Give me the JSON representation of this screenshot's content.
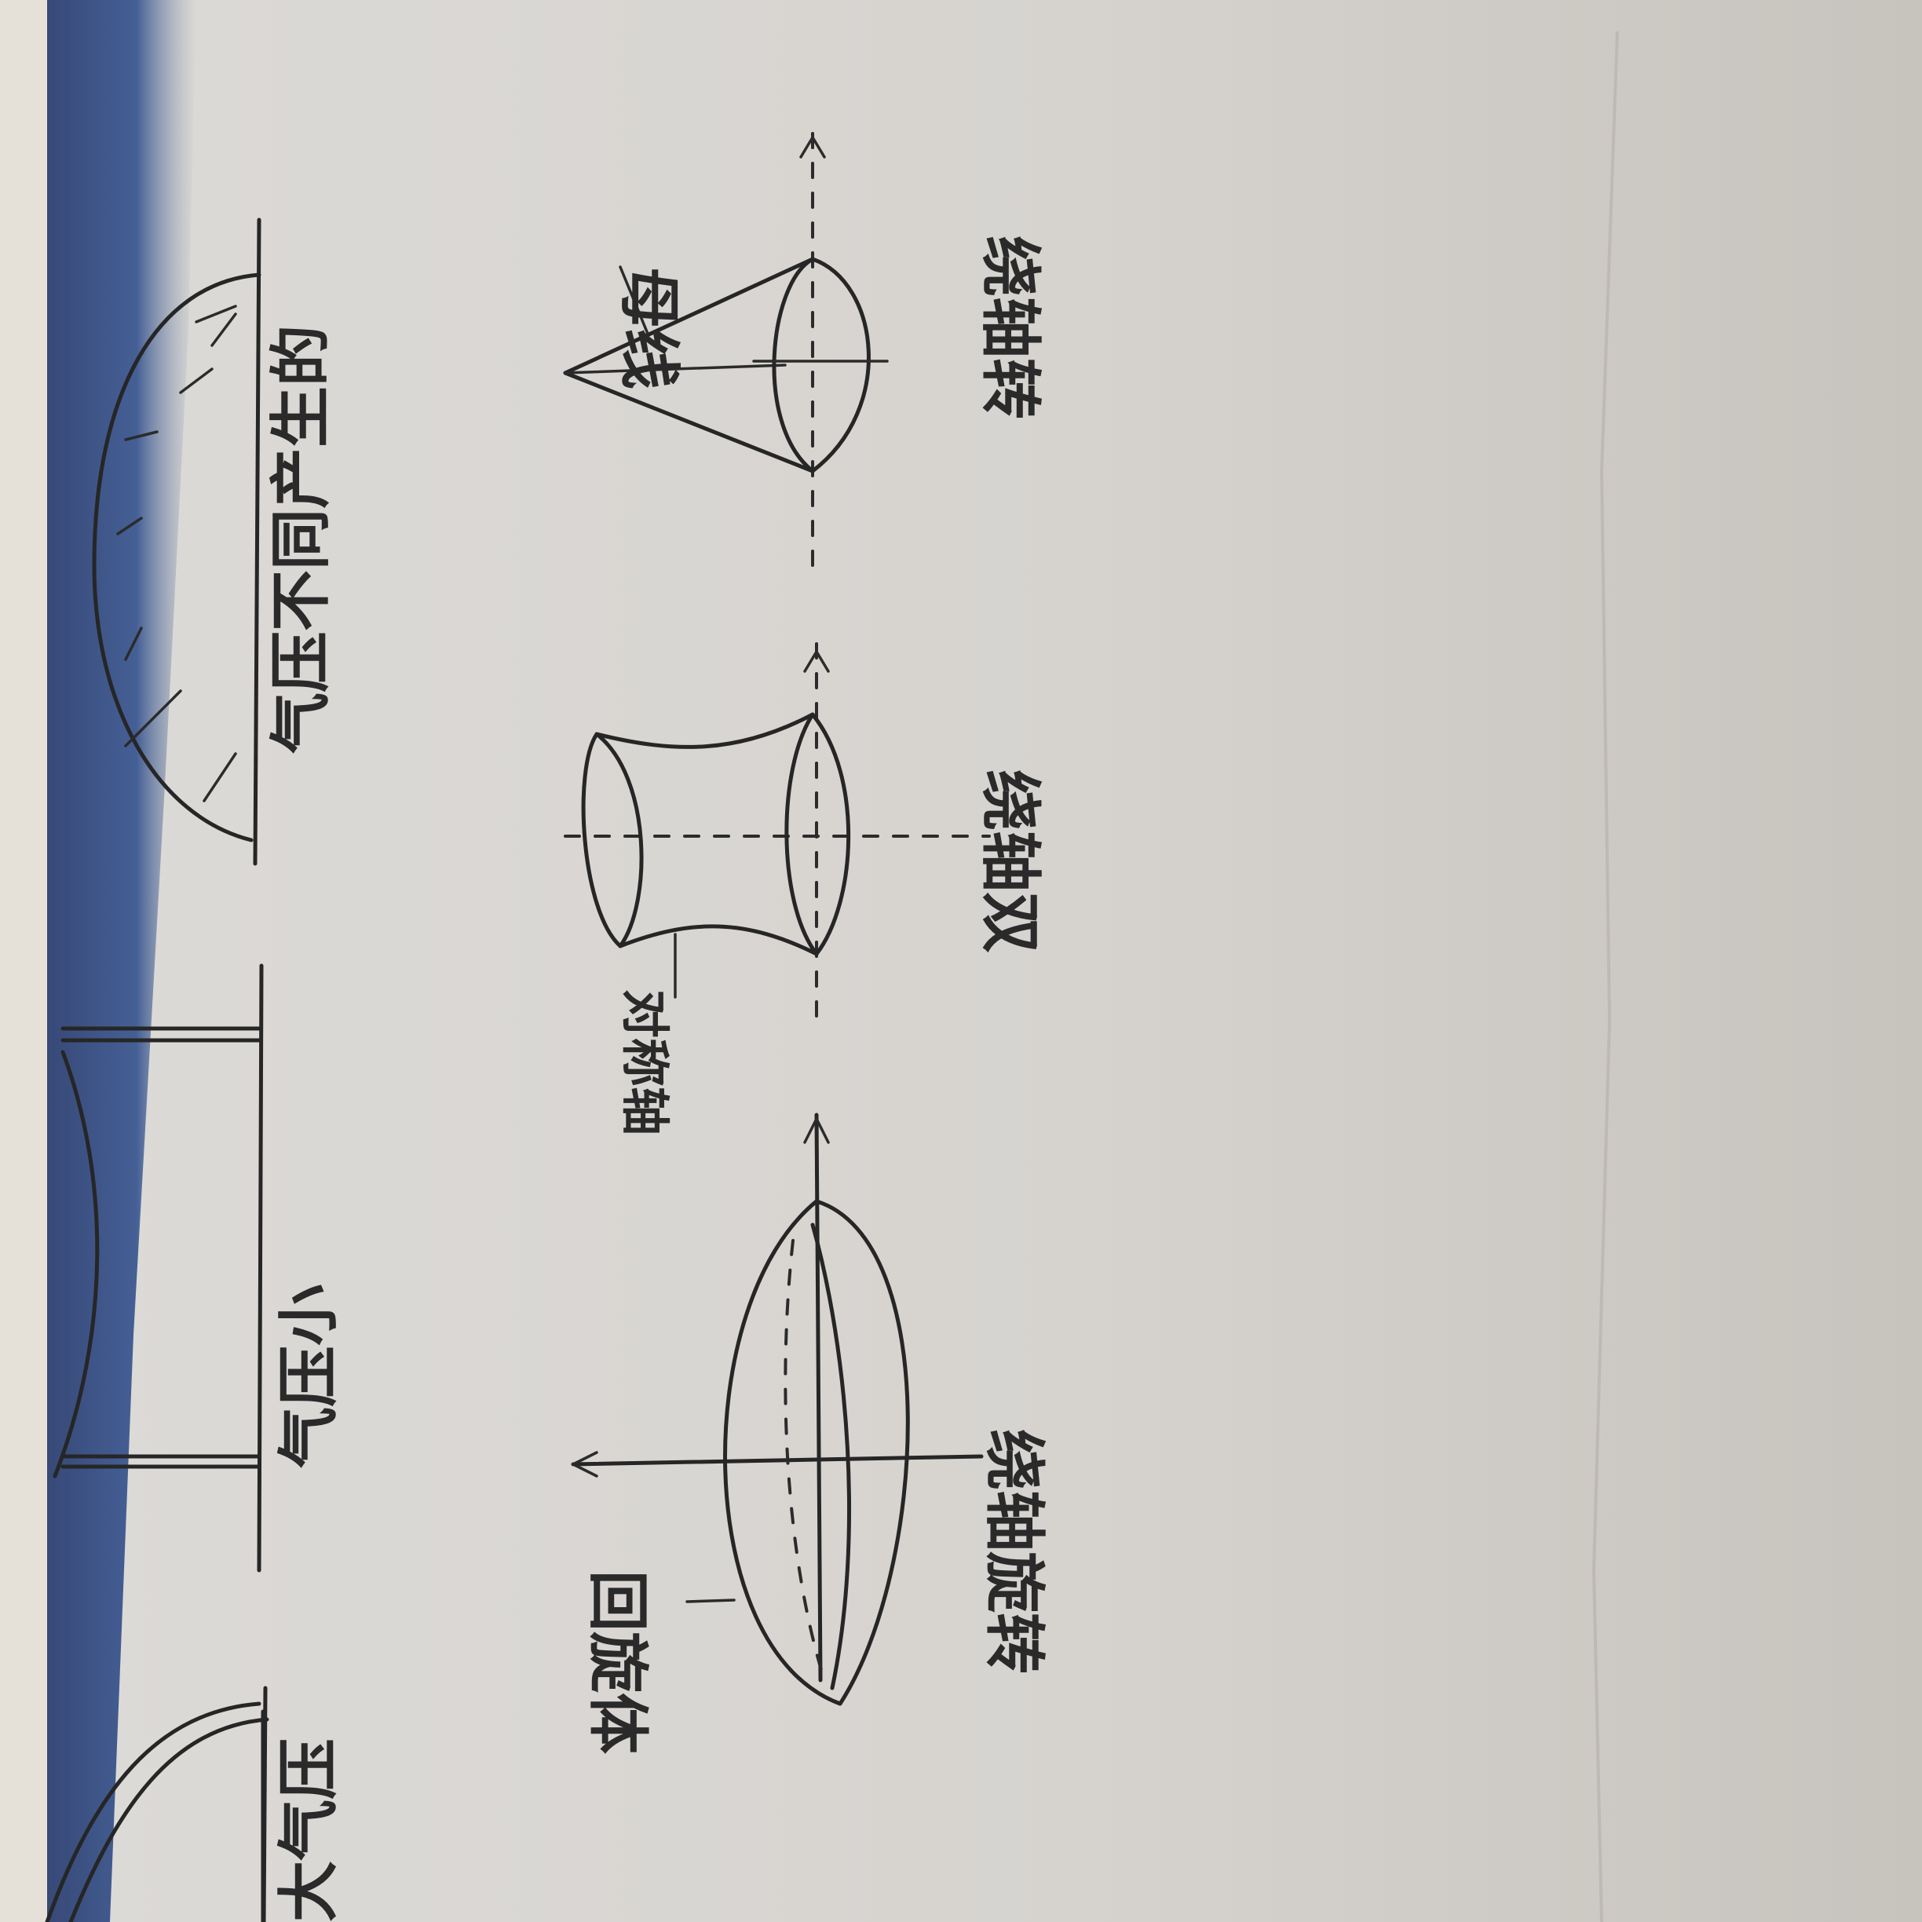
{
  "labels": {
    "cone_name": "绕轴转",
    "cone_side": "母线",
    "hyperboloid_name": "绕轴双",
    "hyperboloid_axis": "对称轴",
    "ellipsoid_name": "绕轴旋转",
    "ellipsoid_side": "回旋体",
    "left_top": "气压不同产生的",
    "left_middle": "气压小",
    "left_bottom": "大气压"
  },
  "colors": {
    "paper": "#d9d7d4",
    "paper_shadow": "#bfbcb7",
    "ink": "#262626",
    "binding_blue": "#1d3a78",
    "background_edge": "#e9e4db"
  }
}
